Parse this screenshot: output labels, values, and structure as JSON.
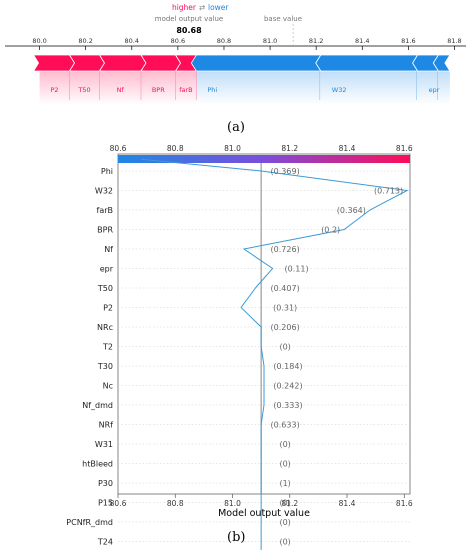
{
  "chart_data": [
    {
      "type": "force",
      "panel_label": "(a)",
      "legend": {
        "higher": "higher",
        "lower": "lower",
        "arrows": "⇄"
      },
      "output_label": "model output value",
      "output_value": "80.68",
      "base_label": "base value",
      "base_value": 81.1,
      "xlim": [
        79.85,
        81.85
      ],
      "ticks": [
        80.0,
        80.2,
        80.4,
        80.6,
        80.8,
        81.0,
        81.2,
        81.4,
        81.6,
        81.8
      ],
      "tick_labels": [
        "80.0",
        "80.2",
        "80.4",
        "80.6",
        "80.8",
        "81.0",
        "81.2",
        "81.4",
        "81.6",
        "81.8"
      ],
      "positive_segments": [
        {
          "feature": "P2",
          "from": 80.0,
          "to": 80.13
        },
        {
          "feature": "T50",
          "from": 80.13,
          "to": 80.26
        },
        {
          "feature": "Nf",
          "from": 80.26,
          "to": 80.44
        },
        {
          "feature": "BPR",
          "from": 80.44,
          "to": 80.59
        },
        {
          "feature": "farB",
          "from": 80.59,
          "to": 80.68
        }
      ],
      "negative_segments": [
        {
          "feature": "Phi",
          "from": 80.68,
          "to": 81.22
        },
        {
          "feature": "W32",
          "from": 81.22,
          "to": 81.64
        },
        {
          "feature": "epr",
          "from": 81.64,
          "to": 81.73
        },
        {
          "feature": "",
          "from": 81.73,
          "to": 81.78
        }
      ],
      "colors": {
        "positive": "#ff0d57",
        "negative": "#1e88e5"
      }
    },
    {
      "type": "decision",
      "panel_label": "(b)",
      "xlabel": "Model output value",
      "xlim": [
        80.6,
        81.62
      ],
      "ticks": [
        80.6,
        80.8,
        81.0,
        81.2,
        81.4,
        81.6
      ],
      "tick_labels": [
        "80.6",
        "80.8",
        "81.0",
        "81.2",
        "81.4",
        "81.6"
      ],
      "base_value": 81.1,
      "start_value": 80.68,
      "features": [
        {
          "name": "Phi",
          "value_label": "(0.369)",
          "x": 81.1
        },
        {
          "name": "W32",
          "value_label": "(0.713)",
          "x": 81.61
        },
        {
          "name": "farB",
          "value_label": "(0.364)",
          "x": 81.48
        },
        {
          "name": "BPR",
          "value_label": "(0.2)",
          "x": 81.39
        },
        {
          "name": "Nf",
          "value_label": "(0.726)",
          "x": 81.04
        },
        {
          "name": "epr",
          "value_label": "(0.11)",
          "x": 81.14
        },
        {
          "name": "T50",
          "value_label": "(0.407)",
          "x": 81.08
        },
        {
          "name": "P2",
          "value_label": "(0.31)",
          "x": 81.03
        },
        {
          "name": "NRc",
          "value_label": "(0.206)",
          "x": 81.1
        },
        {
          "name": "T2",
          "value_label": "(0)",
          "x": 81.1
        },
        {
          "name": "T30",
          "value_label": "(0.184)",
          "x": 81.11
        },
        {
          "name": "Nc",
          "value_label": "(0.242)",
          "x": 81.11
        },
        {
          "name": "Nf_dmd",
          "value_label": "(0.333)",
          "x": 81.11
        },
        {
          "name": "NRf",
          "value_label": "(0.633)",
          "x": 81.1
        },
        {
          "name": "W31",
          "value_label": "(0)",
          "x": 81.1
        },
        {
          "name": "htBleed",
          "value_label": "(0)",
          "x": 81.1
        },
        {
          "name": "P30",
          "value_label": "(1)",
          "x": 81.1
        },
        {
          "name": "P15",
          "value_label": "(0)",
          "x": 81.1
        },
        {
          "name": "PCNfR_dmd",
          "value_label": "(0)",
          "x": 81.1
        },
        {
          "name": "T24",
          "value_label": "(0)",
          "x": 81.1
        }
      ],
      "line_color": "#3b9bd6",
      "colorbar": {
        "from": "#1e88e5",
        "to": "#ff0d57"
      }
    }
  ]
}
